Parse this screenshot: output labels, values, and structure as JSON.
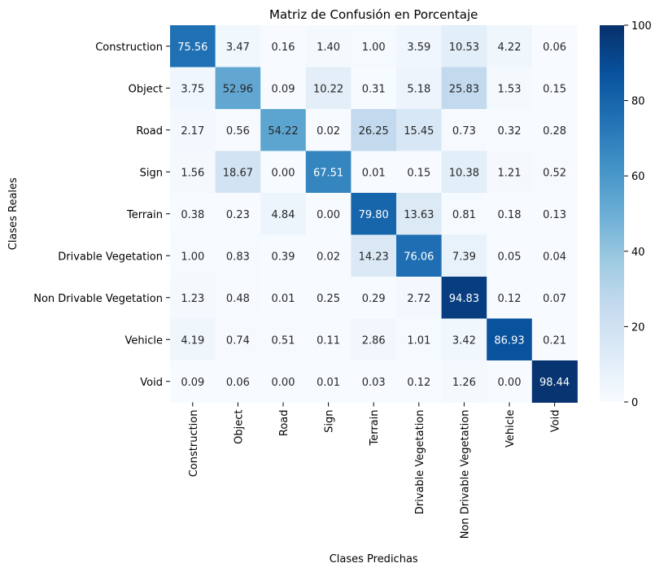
{
  "chart_data": {
    "type": "heatmap",
    "title": "Matriz de Confusión en Porcentaje",
    "xlabel": "Clases Predichas",
    "ylabel": "Clases Reales",
    "categories": [
      "Construction",
      "Object",
      "Road",
      "Sign",
      "Terrain",
      "Drivable Vegetation",
      "Non Drivable Vegetation",
      "Vehicle",
      "Void"
    ],
    "values": [
      [
        75.56,
        3.47,
        0.16,
        1.4,
        1.0,
        3.59,
        10.53,
        4.22,
        0.06
      ],
      [
        3.75,
        52.96,
        0.09,
        10.22,
        0.31,
        5.18,
        25.83,
        1.53,
        0.15
      ],
      [
        2.17,
        0.56,
        54.22,
        0.02,
        26.25,
        15.45,
        0.73,
        0.32,
        0.28
      ],
      [
        1.56,
        18.67,
        0.0,
        67.51,
        0.01,
        0.15,
        10.38,
        1.21,
        0.52
      ],
      [
        0.38,
        0.23,
        4.84,
        0.0,
        79.8,
        13.63,
        0.81,
        0.18,
        0.13
      ],
      [
        1.0,
        0.83,
        0.39,
        0.02,
        14.23,
        76.06,
        7.39,
        0.05,
        0.04
      ],
      [
        1.23,
        0.48,
        0.01,
        0.25,
        0.29,
        2.72,
        94.83,
        0.12,
        0.07
      ],
      [
        4.19,
        0.74,
        0.51,
        0.11,
        2.86,
        1.01,
        3.42,
        86.93,
        0.21
      ],
      [
        0.09,
        0.06,
        0.0,
        0.01,
        0.03,
        0.12,
        1.26,
        0.0,
        98.44
      ]
    ],
    "colorbar": {
      "min": 0,
      "max": 100,
      "ticks": [
        0,
        20,
        40,
        60,
        80,
        100
      ]
    },
    "colormap": "Blues",
    "colormap_stops": [
      "#f7fbff",
      "#deebf7",
      "#c6dbef",
      "#9ecae1",
      "#6baed6",
      "#4292c6",
      "#2171b5",
      "#08519c",
      "#08306b"
    ]
  }
}
